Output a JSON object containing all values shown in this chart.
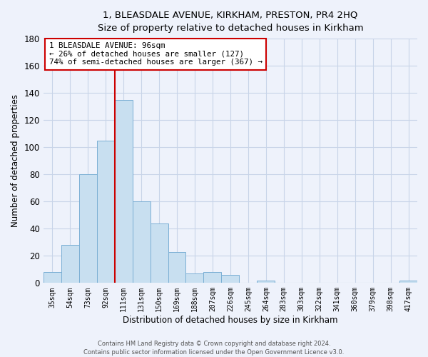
{
  "title": "1, BLEASDALE AVENUE, KIRKHAM, PRESTON, PR4 2HQ",
  "subtitle": "Size of property relative to detached houses in Kirkham",
  "xlabel": "Distribution of detached houses by size in Kirkham",
  "ylabel": "Number of detached properties",
  "bin_labels": [
    "35sqm",
    "54sqm",
    "73sqm",
    "92sqm",
    "111sqm",
    "131sqm",
    "150sqm",
    "169sqm",
    "188sqm",
    "207sqm",
    "226sqm",
    "245sqm",
    "264sqm",
    "283sqm",
    "303sqm",
    "322sqm",
    "341sqm",
    "360sqm",
    "379sqm",
    "398sqm",
    "417sqm"
  ],
  "bar_heights": [
    8,
    28,
    80,
    105,
    135,
    60,
    44,
    23,
    7,
    8,
    6,
    0,
    2,
    0,
    0,
    0,
    0,
    0,
    0,
    0,
    2
  ],
  "bar_color": "#c8dff0",
  "bar_edge_color": "#7bafd4",
  "ylim": [
    0,
    180
  ],
  "yticks": [
    0,
    20,
    40,
    60,
    80,
    100,
    120,
    140,
    160,
    180
  ],
  "annotation_title": "1 BLEASDALE AVENUE: 96sqm",
  "annotation_line1": "← 26% of detached houses are smaller (127)",
  "annotation_line2": "74% of semi-detached houses are larger (367) →",
  "annotation_box_facecolor": "#ffffff",
  "annotation_box_edgecolor": "#cc0000",
  "property_line_color": "#cc0000",
  "footer1": "Contains HM Land Registry data © Crown copyright and database right 2024.",
  "footer2": "Contains public sector information licensed under the Open Government Licence v3.0.",
  "grid_color": "#c8d4e8",
  "background_color": "#eef2fb"
}
